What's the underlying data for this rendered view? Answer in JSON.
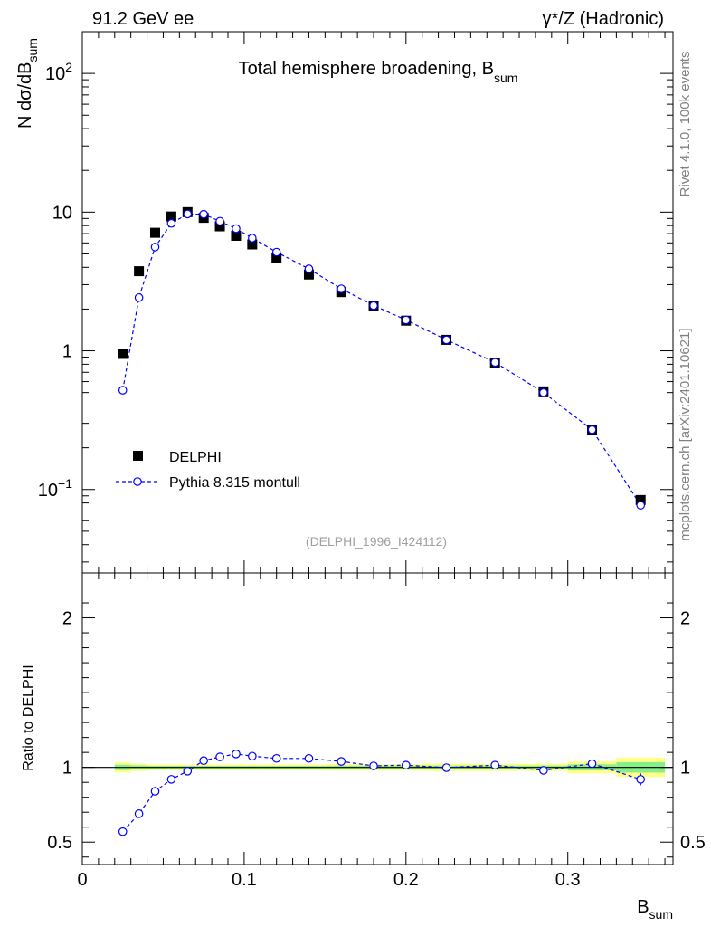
{
  "header": {
    "left": "91.2 GeV ee",
    "right": "γ*/Z (Hadronic)"
  },
  "side_labels": {
    "rivet": "Rivet 4.1.0,  100k events",
    "source": "mcplots.cern.ch [arXiv:2401.10621]"
  },
  "chart_data": [
    {
      "type": "scatter",
      "title": "Total hemisphere broadening, B",
      "title_subscript": "sum",
      "ylabel_prefix": "N  dσ/dB",
      "ylabel_subscript": "sum",
      "yscale": "log",
      "xlim": [
        0,
        0.365
      ],
      "ylim": [
        0.025,
        200
      ],
      "y_tick_labels": [
        {
          "value": 0.1,
          "base": "10",
          "exp": "−1"
        },
        {
          "value": 1,
          "base": "1",
          "exp": ""
        },
        {
          "value": 10,
          "base": "10",
          "exp": ""
        },
        {
          "value": 100,
          "base": "10",
          "exp": "2"
        }
      ],
      "analysis_label": "(DELPHI_1996_I424112)",
      "legend": {
        "position": "bottom-left",
        "entries": [
          "DELPHI",
          "Pythia 8.315 montull"
        ]
      },
      "series": [
        {
          "name": "DELPHI",
          "marker": "filled-square",
          "color": "#000000",
          "x": [
            0.025,
            0.035,
            0.045,
            0.055,
            0.065,
            0.075,
            0.085,
            0.095,
            0.105,
            0.12,
            0.14,
            0.16,
            0.18,
            0.2,
            0.225,
            0.255,
            0.285,
            0.315,
            0.345
          ],
          "y": [
            0.95,
            3.75,
            7.1,
            9.3,
            10.0,
            9.1,
            7.9,
            6.75,
            5.85,
            4.7,
            3.55,
            2.65,
            2.1,
            1.65,
            1.2,
            0.82,
            0.51,
            0.27,
            0.084
          ]
        },
        {
          "name": "Pythia 8.315 montull",
          "marker": "open-circle",
          "line": "dashed",
          "color": "#0000ff",
          "x": [
            0.025,
            0.035,
            0.045,
            0.055,
            0.065,
            0.075,
            0.085,
            0.095,
            0.105,
            0.12,
            0.14,
            0.16,
            0.18,
            0.2,
            0.225,
            0.255,
            0.285,
            0.315,
            0.345
          ],
          "y": [
            0.52,
            2.42,
            5.6,
            8.3,
            9.7,
            9.65,
            8.6,
            7.6,
            6.5,
            5.15,
            3.9,
            2.8,
            2.12,
            1.67,
            1.2,
            0.825,
            0.5,
            0.27,
            0.077
          ]
        }
      ]
    },
    {
      "type": "scatter",
      "ylabel": "Ratio to DELPHI",
      "xlabel": "B",
      "xlabel_subscript": "sum",
      "xlim": [
        0,
        0.365
      ],
      "ylim": [
        0.35,
        2.3
      ],
      "x_ticks": [
        0,
        0.1,
        0.2,
        0.3
      ],
      "x_tick_labels": [
        "0",
        "0.1",
        "0.2",
        "0.3"
      ],
      "y_ticks": [
        0.5,
        1,
        2
      ],
      "y_tick_labels": [
        "0.5",
        "1",
        "2"
      ],
      "reference_line": 1,
      "bands": {
        "bin_edges": [
          0.02,
          0.03,
          0.04,
          0.05,
          0.06,
          0.07,
          0.08,
          0.09,
          0.1,
          0.11,
          0.13,
          0.15,
          0.17,
          0.19,
          0.21,
          0.24,
          0.27,
          0.3,
          0.33,
          0.36
        ],
        "yellow_halfwidth": [
          0.035,
          0.025,
          0.02,
          0.02,
          0.02,
          0.02,
          0.02,
          0.02,
          0.02,
          0.02,
          0.02,
          0.022,
          0.022,
          0.022,
          0.025,
          0.025,
          0.025,
          0.04,
          0.065
        ],
        "green_halfwidth": [
          0.018,
          0.013,
          0.01,
          0.01,
          0.01,
          0.01,
          0.01,
          0.01,
          0.01,
          0.01,
          0.01,
          0.011,
          0.011,
          0.011,
          0.012,
          0.012,
          0.012,
          0.02,
          0.035
        ]
      },
      "series": [
        {
          "name": "Pythia 8.315 montull / DELPHI",
          "marker": "open-circle",
          "line": "dashed",
          "color": "#0000ff",
          "x": [
            0.025,
            0.035,
            0.045,
            0.055,
            0.065,
            0.075,
            0.085,
            0.095,
            0.105,
            0.12,
            0.14,
            0.16,
            0.18,
            0.2,
            0.225,
            0.255,
            0.285,
            0.315,
            0.345
          ],
          "y": [
            0.57,
            0.69,
            0.84,
            0.92,
            0.975,
            1.045,
            1.07,
            1.09,
            1.075,
            1.06,
            1.06,
            1.04,
            1.01,
            1.015,
            0.998,
            1.015,
            0.98,
            1.025,
            0.92
          ],
          "yerr": [
            0.025,
            0.008,
            0.006,
            0.005,
            0.005,
            0.005,
            0.005,
            0.005,
            0.005,
            0.005,
            0.006,
            0.007,
            0.007,
            0.008,
            0.009,
            0.01,
            0.013,
            0.02,
            0.04
          ]
        }
      ]
    }
  ]
}
